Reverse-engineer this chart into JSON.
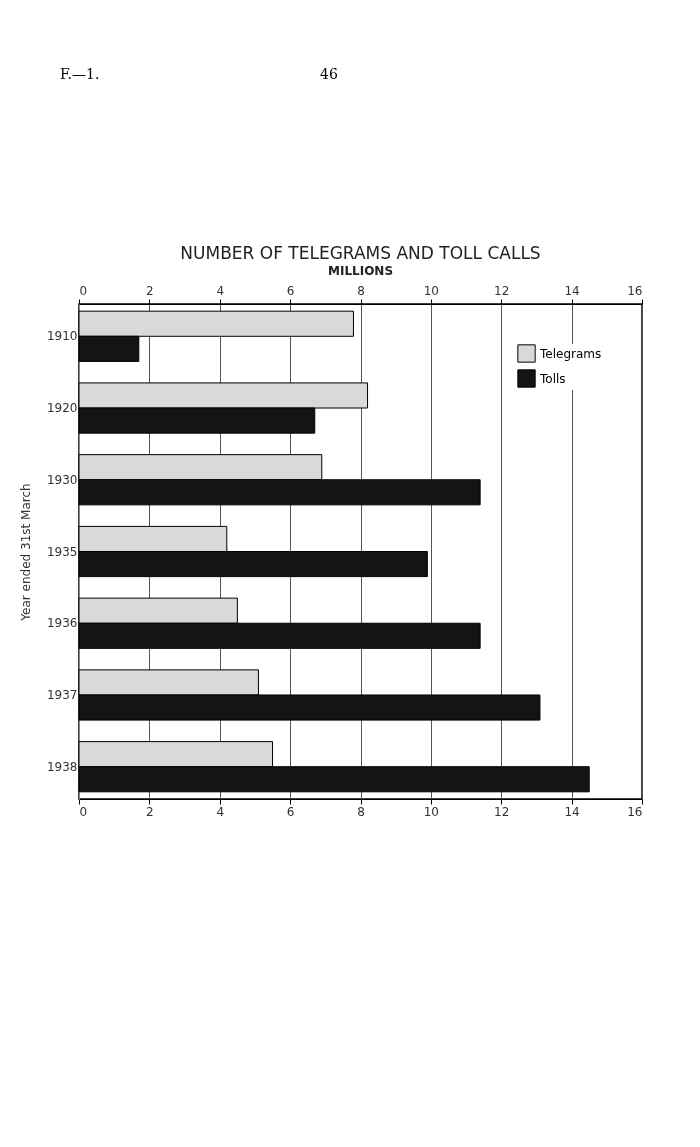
{
  "chart_data": {
    "type": "bar",
    "orientation": "horizontal",
    "title": "NUMBER OF TELEGRAMS AND TOLL CALLS",
    "subtitle": "MILLIONS",
    "ylabel": "Year ended 31st March",
    "annotations": [
      "F.—1.",
      "46"
    ],
    "categories": [
      "1910",
      "1920",
      "1930",
      "1935",
      "1936",
      "1937",
      "1938"
    ],
    "series": [
      {
        "name": "Telegrams",
        "color": "#d9d9d9",
        "values": [
          7.8,
          8.2,
          6.9,
          4.2,
          4.5,
          5.1,
          5.5
        ]
      },
      {
        "name": "Tolls",
        "color": "#141414",
        "values": [
          1.7,
          6.7,
          11.4,
          9.9,
          11.4,
          13.1,
          14.5
        ]
      }
    ],
    "xlim": [
      0,
      16
    ],
    "xticks": [
      0,
      2,
      4,
      6,
      8,
      10,
      12,
      14,
      16
    ],
    "x2lim": [
      0,
      16
    ],
    "x2ticks": [
      0,
      2,
      4,
      6,
      8,
      10,
      12,
      14,
      16
    ],
    "grid": "x",
    "legend": "top right"
  }
}
